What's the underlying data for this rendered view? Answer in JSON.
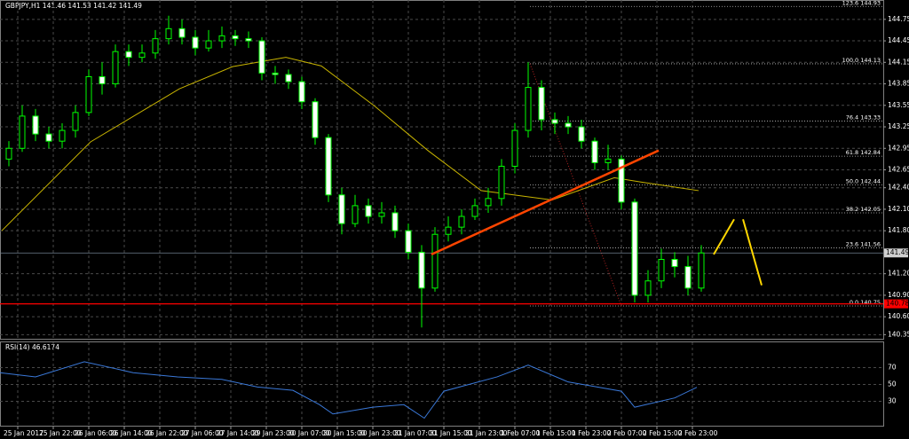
{
  "chart_data": {
    "type": "candlestick",
    "title": "GBPJPY,H1  141.46 141.53 141.42 141.49",
    "up_color": "#00ff00",
    "down_color": "#ffffff",
    "grid": true,
    "x": [
      -2,
      1,
      4,
      7,
      10,
      13,
      16,
      19,
      22,
      25,
      28,
      31,
      34,
      37,
      40,
      43,
      46,
      49,
      52,
      55,
      58,
      61,
      64,
      67,
      70,
      73,
      76,
      79,
      82,
      85,
      88,
      91,
      94,
      97,
      100,
      103,
      106,
      109,
      112,
      115,
      118,
      121,
      124,
      127,
      130,
      133,
      136,
      139,
      142,
      145,
      148,
      151,
      154
    ],
    "open": [
      142.8,
      142.95,
      143.4,
      143.15,
      143.05,
      143.2,
      143.45,
      143.95,
      143.85,
      144.3,
      144.22,
      144.28,
      144.48,
      144.62,
      144.5,
      144.35,
      144.45,
      144.52,
      144.48,
      144.45,
      144.0,
      143.98,
      143.88,
      143.6,
      143.1,
      142.3,
      141.9,
      142.15,
      142.0,
      142.05,
      141.8,
      141.5,
      141.0,
      141.75,
      141.85,
      142.0,
      142.15,
      142.25,
      142.7,
      143.2,
      143.8,
      143.35,
      143.3,
      143.25,
      143.05,
      142.75,
      142.8,
      142.2,
      140.9,
      141.1,
      141.4,
      141.3,
      141.0
    ],
    "high": [
      143.05,
      143.55,
      143.5,
      143.25,
      143.3,
      143.55,
      144.05,
      144.15,
      144.4,
      144.4,
      144.4,
      144.6,
      144.8,
      144.75,
      144.6,
      144.6,
      144.65,
      144.6,
      144.58,
      144.5,
      144.1,
      144.05,
      143.95,
      143.65,
      143.15,
      142.4,
      142.3,
      142.25,
      142.2,
      142.15,
      141.9,
      141.6,
      141.85,
      142.0,
      142.1,
      142.25,
      142.4,
      142.8,
      143.3,
      144.15,
      143.9,
      143.45,
      143.4,
      143.35,
      143.1,
      143.0,
      142.85,
      142.25,
      141.25,
      141.55,
      141.5,
      141.45,
      141.6
    ],
    "low": [
      142.7,
      142.9,
      143.05,
      142.95,
      142.95,
      143.1,
      143.4,
      143.7,
      143.8,
      144.1,
      144.15,
      144.2,
      144.4,
      144.4,
      144.25,
      144.3,
      144.35,
      144.38,
      144.35,
      143.9,
      143.85,
      143.78,
      143.5,
      143.0,
      142.2,
      141.75,
      141.85,
      141.9,
      141.9,
      141.7,
      141.4,
      140.45,
      140.95,
      141.65,
      141.75,
      141.95,
      142.05,
      142.15,
      142.6,
      143.1,
      143.2,
      143.15,
      143.15,
      142.95,
      142.65,
      142.65,
      142.1,
      140.8,
      140.8,
      141.0,
      141.15,
      140.9,
      140.95
    ],
    "close": [
      142.95,
      143.4,
      143.15,
      143.05,
      143.2,
      143.45,
      143.95,
      143.85,
      144.3,
      144.22,
      144.28,
      144.48,
      144.62,
      144.5,
      144.35,
      144.45,
      144.52,
      144.48,
      144.45,
      144.0,
      143.98,
      143.88,
      143.6,
      143.1,
      142.3,
      141.9,
      142.15,
      142.0,
      142.05,
      141.8,
      141.5,
      141.0,
      141.75,
      141.85,
      142.0,
      142.15,
      142.25,
      142.7,
      143.2,
      143.8,
      143.35,
      143.3,
      143.25,
      143.05,
      142.75,
      142.8,
      142.2,
      140.9,
      141.1,
      141.4,
      141.3,
      141.0,
      141.49
    ],
    "xlim": [
      -4,
      195
    ],
    "ylim": [
      140.28,
      145.02
    ],
    "xticks": [
      {
        "value": 0,
        "label": "25 Jan 2017"
      },
      {
        "value": 8,
        "label": "25 Jan 22:00"
      },
      {
        "value": 16,
        "label": "26 Jan 06:00"
      },
      {
        "value": 24,
        "label": "26 Jan 14:00"
      },
      {
        "value": 32,
        "label": "26 Jan 22:00"
      },
      {
        "value": 40,
        "label": "27 Jan 06:00"
      },
      {
        "value": 48,
        "label": "27 Jan 14:00"
      },
      {
        "value": 56,
        "label": "29 Jan 23:00"
      },
      {
        "value": 64,
        "label": "30 Jan 07:00"
      },
      {
        "value": 72,
        "label": "30 Jan 15:00"
      },
      {
        "value": 80,
        "label": "30 Jan 23:00"
      },
      {
        "value": 88,
        "label": "31 Jan 07:00"
      },
      {
        "value": 96,
        "label": "31 Jan 15:00"
      },
      {
        "value": 104,
        "label": "31 Jan 23:00"
      },
      {
        "value": 112,
        "label": "1 Feb 07:00"
      },
      {
        "value": 120,
        "label": "1 Feb 15:00"
      },
      {
        "value": 128,
        "label": "1 Feb 23:00"
      },
      {
        "value": 136,
        "label": "2 Feb 07:00"
      },
      {
        "value": 144,
        "label": "2 Feb 15:00"
      },
      {
        "value": 152,
        "label": "2 Feb 23:00"
      }
    ],
    "yticks": [
      144.75,
      144.45,
      144.15,
      143.85,
      143.55,
      143.25,
      142.95,
      142.65,
      {
        "value": 142.4,
        "label": "142.40"
      },
      {
        "value": 142.1,
        "label": "142.10"
      },
      {
        "value": 141.8,
        "label": "141.80"
      },
      {
        "value": 141.2,
        "label": "141.20"
      },
      {
        "value": 140.9,
        "label": "140.90"
      },
      {
        "value": 140.6,
        "label": "140.60"
      },
      140.35
    ],
    "moving_average": {
      "color": "#c8b400",
      "x": [
        -3.6,
        16.4,
        36.4,
        48.4,
        60.4,
        68.4,
        80.4,
        92.4,
        104.4,
        120.4,
        134.4,
        140.4,
        153.4
      ],
      "values": [
        141.8,
        143.04,
        143.78,
        144.09,
        144.22,
        144.1,
        143.54,
        142.92,
        142.36,
        142.23,
        142.54,
        142.48,
        142.36
      ]
    },
    "last_price": 141.49,
    "support_level": 140.78,
    "support_color": "#ff0000",
    "trendline": {
      "color": "#ff4500",
      "x": [
        93.2,
        144.4
      ],
      "values": [
        141.47,
        142.92
      ]
    },
    "projection": {
      "color": "#ffd700",
      "x": [
        156.8,
        161.4,
        163.4,
        167.6
      ],
      "values": [
        141.47,
        141.96,
        141.96,
        141.04
      ]
    },
    "fibonacci": {
      "color": "#c0c0c0",
      "diagonal_color": "#b22222",
      "start_x": 115.4,
      "end_x": 136,
      "levels": [
        {
          "label": "123.6 144.93",
          "price": 144.93
        },
        {
          "label": "100.0 144.13",
          "price": 144.13
        },
        {
          "label": "76.4 143.33",
          "price": 143.33
        },
        {
          "label": "61.8 142.84",
          "price": 142.84
        },
        {
          "label": "50.0 142.44",
          "price": 142.44
        },
        {
          "label": "38.2 142.05",
          "price": 142.05
        },
        {
          "label": "23.6 141.56",
          "price": 141.56
        },
        {
          "label": "0.0 140.75",
          "price": 140.75
        }
      ]
    },
    "rsi": {
      "title": "RSI(14) 46.6174",
      "color": "#3a78d8",
      "x": [
        -4,
        4,
        15,
        26,
        36,
        46,
        54,
        62,
        68,
        71,
        80,
        87,
        91.6,
        96,
        108,
        115,
        124,
        136,
        139,
        148,
        153
      ],
      "values": [
        64,
        59,
        77,
        64,
        59,
        56,
        47,
        43,
        26,
        15,
        23,
        26,
        10,
        42,
        59,
        73,
        53,
        42,
        23,
        34,
        46.6
      ],
      "ylim": [
        0,
        100
      ],
      "yticks": [
        70,
        50,
        30
      ]
    }
  }
}
